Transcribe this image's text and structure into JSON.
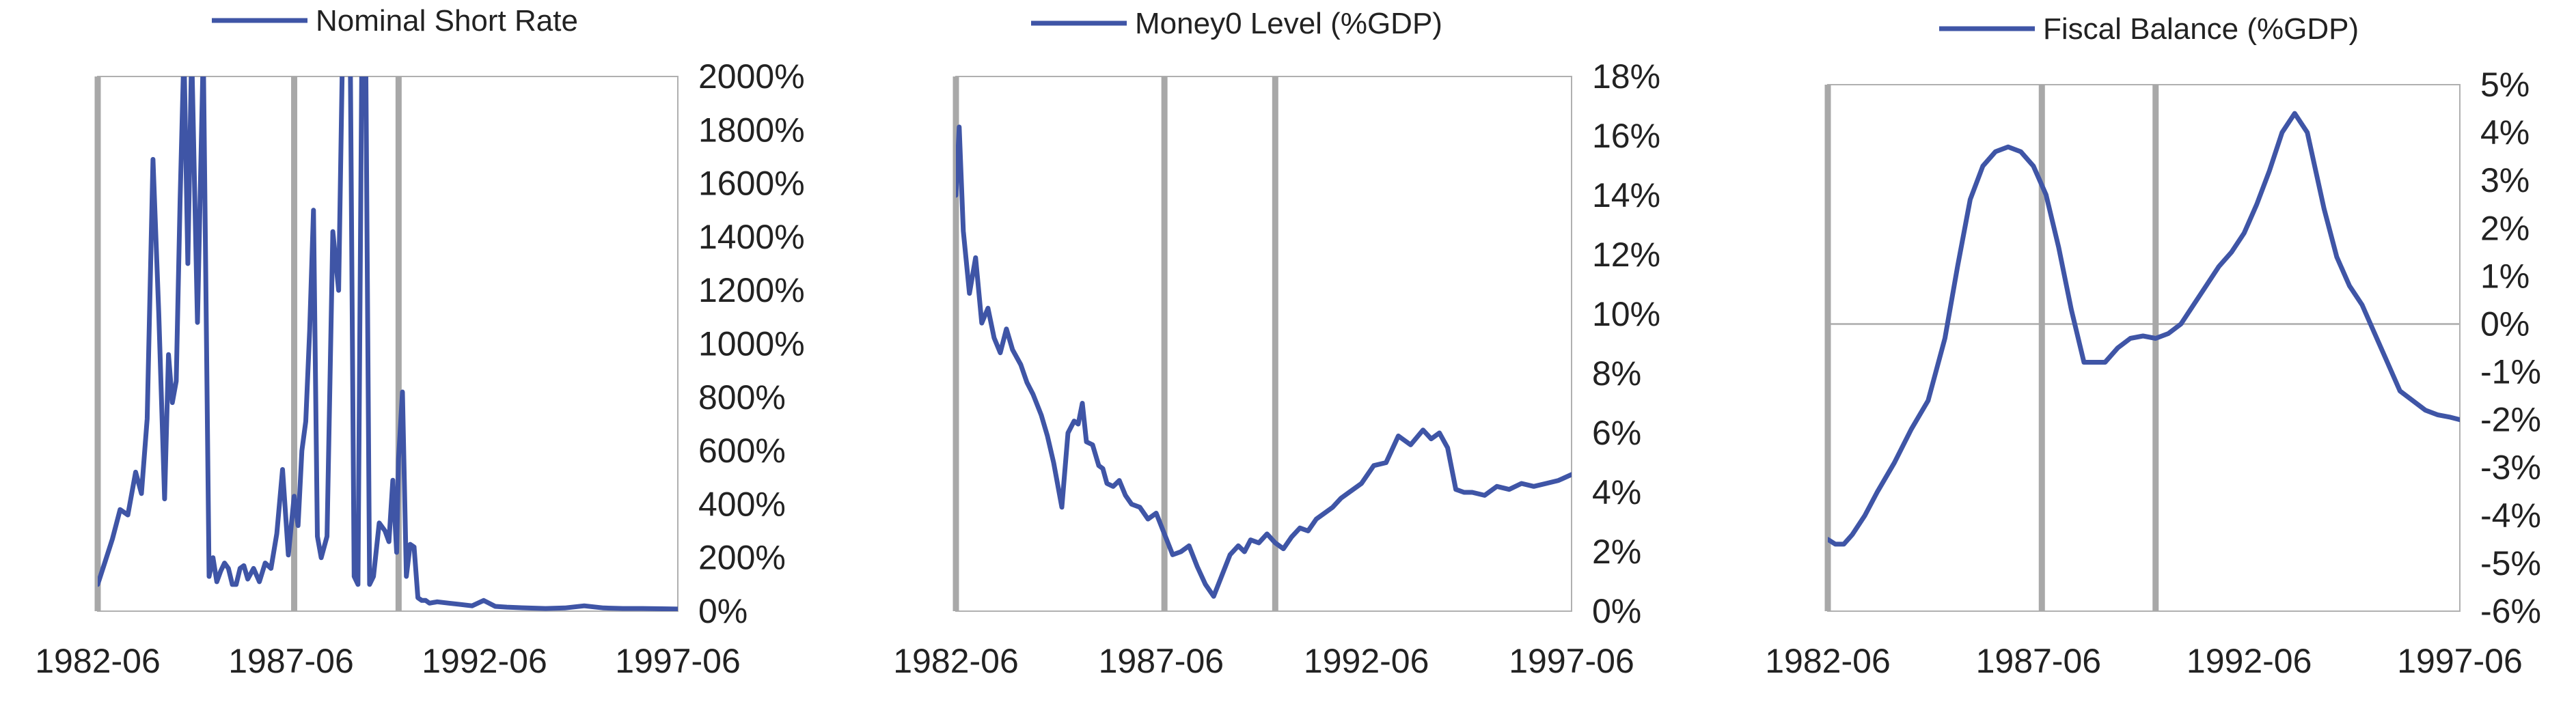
{
  "colors": {
    "series": "#3f55a6",
    "event_line": "#a8a8a8",
    "frame": "#b0b0b0",
    "zero_line": "#b8b8b8",
    "text": "#222222"
  },
  "chart_data": [
    {
      "type": "line",
      "title": "",
      "legend": [
        "Nominal Short Rate"
      ],
      "legend_placement": "top-center",
      "x_ticks": [
        "1982-06",
        "1987-06",
        "1992-06",
        "1997-06"
      ],
      "x_range": [
        1982.42,
        1997.42
      ],
      "y_axis_side": "right",
      "ylim": [
        0,
        2000
      ],
      "y_ticks": [
        "0%",
        "200%",
        "400%",
        "600%",
        "800%",
        "1000%",
        "1200%",
        "1400%",
        "1600%",
        "1800%",
        "2000%"
      ],
      "grid": false,
      "event_lines_x": [
        1982.42,
        1987.5,
        1990.2
      ],
      "series": [
        {
          "name": "Nominal Short Rate",
          "x": [
            1982.42,
            1982.6,
            1982.8,
            1983.0,
            1983.2,
            1983.4,
            1983.55,
            1983.7,
            1983.85,
            1984.0,
            1984.15,
            1984.25,
            1984.35,
            1984.45,
            1984.55,
            1984.65,
            1984.75,
            1984.85,
            1985.0,
            1985.15,
            1985.3,
            1985.4,
            1985.5,
            1985.6,
            1985.7,
            1985.8,
            1985.9,
            1986.0,
            1986.1,
            1986.2,
            1986.3,
            1986.45,
            1986.6,
            1986.75,
            1986.9,
            1987.05,
            1987.2,
            1987.35,
            1987.5,
            1987.6,
            1987.7,
            1987.8,
            1987.9,
            1988.0,
            1988.1,
            1988.2,
            1988.35,
            1988.5,
            1988.65,
            1988.75,
            1988.85,
            1988.95,
            1989.05,
            1989.15,
            1989.25,
            1989.35,
            1989.45,
            1989.55,
            1989.7,
            1989.85,
            1989.95,
            1990.05,
            1990.15,
            1990.2,
            1990.3,
            1990.4,
            1990.5,
            1990.6,
            1990.7,
            1990.8,
            1990.9,
            1991.0,
            1991.2,
            1991.5,
            1991.8,
            1992.1,
            1992.4,
            1992.7,
            1993.0,
            1993.5,
            1994.0,
            1994.5,
            1995.0,
            1995.5,
            1996.0,
            1996.5,
            1997.0,
            1997.42
          ],
          "values": [
            100,
            180,
            270,
            380,
            360,
            520,
            440,
            720,
            1690,
            1110,
            420,
            960,
            780,
            860,
            1540,
            2100,
            1300,
            2100,
            1080,
            2100,
            130,
            200,
            110,
            150,
            180,
            160,
            100,
            100,
            160,
            170,
            120,
            160,
            110,
            180,
            160,
            290,
            530,
            210,
            430,
            320,
            600,
            710,
            1050,
            1500,
            280,
            200,
            280,
            1420,
            1200,
            2100,
            2100,
            2100,
            130,
            100,
            2100,
            2100,
            100,
            130,
            330,
            300,
            260,
            490,
            220,
            570,
            820,
            130,
            250,
            240,
            50,
            40,
            40,
            30,
            35,
            30,
            25,
            20,
            40,
            18,
            15,
            12,
            10,
            12,
            20,
            12,
            10,
            10,
            9,
            8
          ]
        }
      ]
    },
    {
      "type": "line",
      "title": "",
      "legend": [
        "Money0 Level (%GDP)"
      ],
      "legend_placement": "top-center",
      "x_ticks": [
        "1982-06",
        "1987-06",
        "1992-06",
        "1997-06"
      ],
      "x_range": [
        1982.42,
        1997.42
      ],
      "y_axis_side": "right",
      "ylim": [
        0,
        18
      ],
      "y_ticks": [
        "0%",
        "2%",
        "4%",
        "6%",
        "8%",
        "10%",
        "12%",
        "14%",
        "16%",
        "18%"
      ],
      "grid": false,
      "event_lines_x": [
        1982.42,
        1987.5,
        1990.2
      ],
      "series": [
        {
          "name": "Money0 Level (%GDP)",
          "x": [
            1982.42,
            1982.5,
            1982.6,
            1982.75,
            1982.9,
            1983.05,
            1983.2,
            1983.35,
            1983.5,
            1983.65,
            1983.8,
            1984.0,
            1984.15,
            1984.3,
            1984.5,
            1984.65,
            1984.8,
            1985.0,
            1985.15,
            1985.3,
            1985.4,
            1985.5,
            1985.6,
            1985.75,
            1985.9,
            1986.0,
            1986.1,
            1986.25,
            1986.4,
            1986.55,
            1986.7,
            1986.9,
            1987.1,
            1987.3,
            1987.5,
            1987.7,
            1987.9,
            1988.1,
            1988.3,
            1988.5,
            1988.7,
            1988.9,
            1989.1,
            1989.3,
            1989.45,
            1989.6,
            1989.8,
            1990.0,
            1990.2,
            1990.4,
            1990.6,
            1990.8,
            1991.0,
            1991.2,
            1991.4,
            1991.6,
            1991.8,
            1992.0,
            1992.3,
            1992.6,
            1992.9,
            1993.2,
            1993.5,
            1993.8,
            1994.0,
            1994.2,
            1994.4,
            1994.6,
            1994.8,
            1995.0,
            1995.3,
            1995.6,
            1995.9,
            1996.2,
            1996.5,
            1996.8,
            1997.1,
            1997.42
          ],
          "values": [
            14.0,
            16.3,
            12.8,
            10.7,
            11.9,
            9.7,
            10.2,
            9.2,
            8.7,
            9.5,
            8.8,
            8.3,
            7.7,
            7.3,
            6.6,
            5.9,
            5.0,
            3.5,
            6.0,
            6.4,
            6.3,
            7.0,
            5.7,
            5.6,
            4.9,
            4.8,
            4.3,
            4.2,
            4.4,
            3.9,
            3.6,
            3.5,
            3.1,
            3.3,
            2.6,
            1.9,
            2.0,
            2.2,
            1.5,
            0.9,
            0.5,
            1.2,
            1.9,
            2.2,
            2.0,
            2.4,
            2.3,
            2.6,
            2.3,
            2.1,
            2.5,
            2.8,
            2.7,
            3.1,
            3.3,
            3.5,
            3.8,
            4.0,
            4.3,
            4.9,
            5.0,
            5.9,
            5.6,
            6.1,
            5.8,
            6.0,
            5.5,
            4.1,
            4.0,
            4.0,
            3.9,
            4.2,
            4.1,
            4.3,
            4.2,
            4.3,
            4.4,
            4.6
          ]
        }
      ]
    },
    {
      "type": "line",
      "title": "",
      "legend": [
        "Fiscal Balance (%GDP)"
      ],
      "legend_placement": "top-center",
      "x_ticks": [
        "1982-06",
        "1987-06",
        "1992-06",
        "1997-06"
      ],
      "x_range": [
        1982.42,
        1997.42
      ],
      "y_axis_side": "right",
      "ylim": [
        -6,
        5
      ],
      "y_ticks": [
        "-6%",
        "-5%",
        "-4%",
        "-3%",
        "-2%",
        "-1%",
        "0%",
        "1%",
        "2%",
        "3%",
        "4%",
        "5%"
      ],
      "grid": false,
      "zero_line": true,
      "event_lines_x": [
        1982.42,
        1987.5,
        1990.2
      ],
      "series": [
        {
          "name": "Fiscal Balance (%GDP)",
          "x": [
            1982.42,
            1982.6,
            1982.8,
            1983.0,
            1983.3,
            1983.6,
            1984.0,
            1984.4,
            1984.8,
            1985.2,
            1985.5,
            1985.8,
            1986.1,
            1986.4,
            1986.7,
            1987.0,
            1987.3,
            1987.6,
            1987.9,
            1988.2,
            1988.5,
            1988.8,
            1989.0,
            1989.3,
            1989.6,
            1989.9,
            1990.2,
            1990.5,
            1990.8,
            1991.1,
            1991.4,
            1991.7,
            1992.0,
            1992.3,
            1992.6,
            1992.9,
            1993.2,
            1993.5,
            1993.8,
            1994.0,
            1994.2,
            1994.5,
            1994.8,
            1995.1,
            1995.4,
            1995.7,
            1996.0,
            1996.3,
            1996.6,
            1996.9,
            1997.2,
            1997.42
          ],
          "values": [
            -4.5,
            -4.6,
            -4.6,
            -4.4,
            -4.0,
            -3.5,
            -2.9,
            -2.2,
            -1.6,
            -0.3,
            1.2,
            2.6,
            3.3,
            3.6,
            3.7,
            3.6,
            3.3,
            2.7,
            1.6,
            0.3,
            -0.8,
            -0.8,
            -0.8,
            -0.5,
            -0.3,
            -0.25,
            -0.3,
            -0.2,
            0.0,
            0.4,
            0.8,
            1.2,
            1.5,
            1.9,
            2.5,
            3.2,
            4.0,
            4.4,
            4.0,
            3.2,
            2.4,
            1.4,
            0.8,
            0.4,
            -0.2,
            -0.8,
            -1.4,
            -1.6,
            -1.8,
            -1.9,
            -1.95,
            -2.0
          ]
        }
      ]
    }
  ]
}
